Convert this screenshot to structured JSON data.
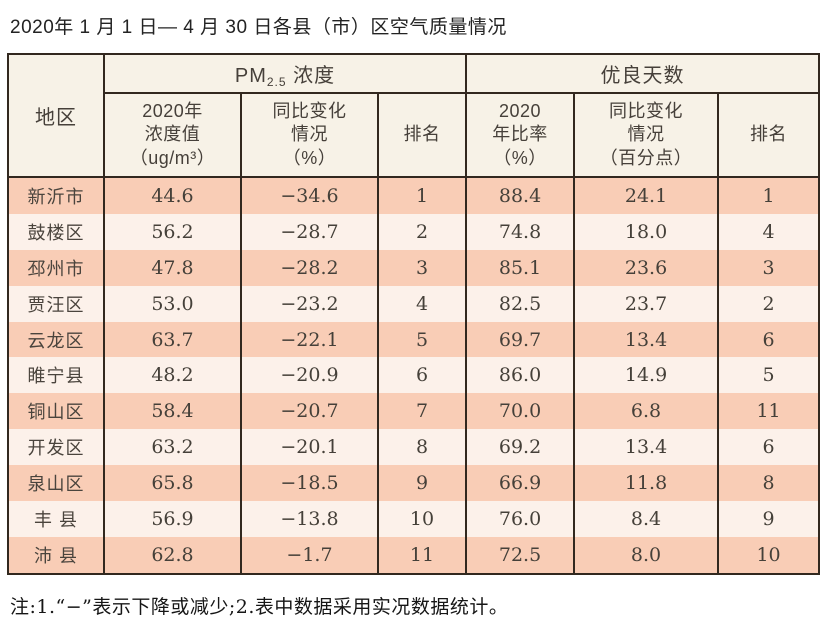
{
  "title": "2020年 1 月 1 日— 4 月 30 日各县（市）区空气质量情况",
  "table": {
    "header": {
      "region": "地区",
      "pm25_group": {
        "main": "PM",
        "sub": "2.5",
        "rest": " 浓度"
      },
      "good_days_group": "优良天数",
      "sub_headers": {
        "pm_value": "2020年\n浓度值\n（ug/m³）",
        "pm_change": "同比变化\n情况\n（%）",
        "pm_rank": "排名",
        "good_rate": "2020\n年比率\n（%）",
        "good_change": "同比变化\n情况\n（百分点）",
        "good_rank": "排名"
      }
    },
    "rows": [
      {
        "region": "新沂市",
        "values": [
          "44.6",
          "−34.6",
          "1",
          "88.4",
          "24.1",
          "1"
        ]
      },
      {
        "region": "鼓楼区",
        "values": [
          "56.2",
          "−28.7",
          "2",
          "74.8",
          "18.0",
          "4"
        ]
      },
      {
        "region": "邳州市",
        "values": [
          "47.8",
          "−28.2",
          "3",
          "85.1",
          "23.6",
          "3"
        ]
      },
      {
        "region": "贾汪区",
        "values": [
          "53.0",
          "−23.2",
          "4",
          "82.5",
          "23.7",
          "2"
        ]
      },
      {
        "region": "云龙区",
        "values": [
          "63.7",
          "−22.1",
          "5",
          "69.7",
          "13.4",
          "6"
        ]
      },
      {
        "region": "睢宁县",
        "values": [
          "48.2",
          "−20.9",
          "6",
          "86.0",
          "14.9",
          "5"
        ]
      },
      {
        "region": "铜山区",
        "values": [
          "58.4",
          "−20.7",
          "7",
          "70.0",
          "6.8",
          "11"
        ]
      },
      {
        "region": "开发区",
        "values": [
          "63.2",
          "−20.1",
          "8",
          "69.2",
          "13.4",
          "6"
        ]
      },
      {
        "region": "泉山区",
        "values": [
          "65.8",
          "−18.5",
          "9",
          "66.9",
          "11.8",
          "8"
        ]
      },
      {
        "region": "丰 县",
        "values": [
          "56.9",
          "−13.8",
          "10",
          "76.0",
          "8.4",
          "9"
        ]
      },
      {
        "region": "沛 县",
        "values": [
          "62.8",
          "−1.7",
          "11",
          "72.5",
          "8.0",
          "10"
        ]
      }
    ]
  },
  "footnote": "注:1.“−”表示下降或减少;2.表中数据采用实况数据统计。",
  "colors": {
    "row_odd": "#f9cdb6",
    "row_even": "#fcf1ea",
    "header_bg": "#f7f2e7",
    "border": "#32281f",
    "text": "#46403a"
  }
}
